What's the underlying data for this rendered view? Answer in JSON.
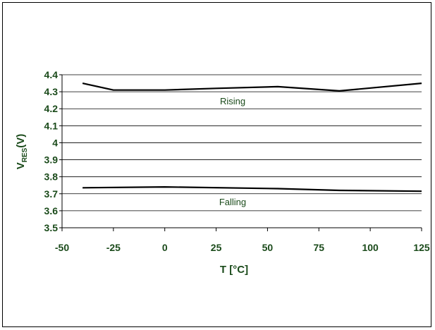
{
  "chart_data": {
    "type": "line",
    "title": "",
    "xlabel": "T [°C]",
    "ylabel": {
      "main": "V",
      "sub": "RES",
      "suffix": "(V)"
    },
    "xlim": [
      -50,
      125
    ],
    "ylim": [
      3.5,
      4.4
    ],
    "x_ticks": [
      -50,
      -25,
      0,
      25,
      50,
      75,
      100,
      125
    ],
    "y_ticks": [
      3.5,
      3.6,
      3.7,
      3.8,
      3.9,
      4,
      4.1,
      4.2,
      4.3,
      4.4
    ],
    "grid": true,
    "text_color": "#1a4a1a",
    "line_color": "#000000",
    "series": [
      {
        "name": "Rising",
        "x": [
          -40,
          -25,
          0,
          25,
          55,
          85,
          125
        ],
        "y": [
          4.35,
          4.31,
          4.31,
          4.32,
          4.33,
          4.305,
          4.35
        ]
      },
      {
        "name": "Falling",
        "x": [
          -40,
          0,
          55,
          85,
          125
        ],
        "y": [
          3.735,
          3.74,
          3.73,
          3.72,
          3.715
        ]
      }
    ]
  }
}
